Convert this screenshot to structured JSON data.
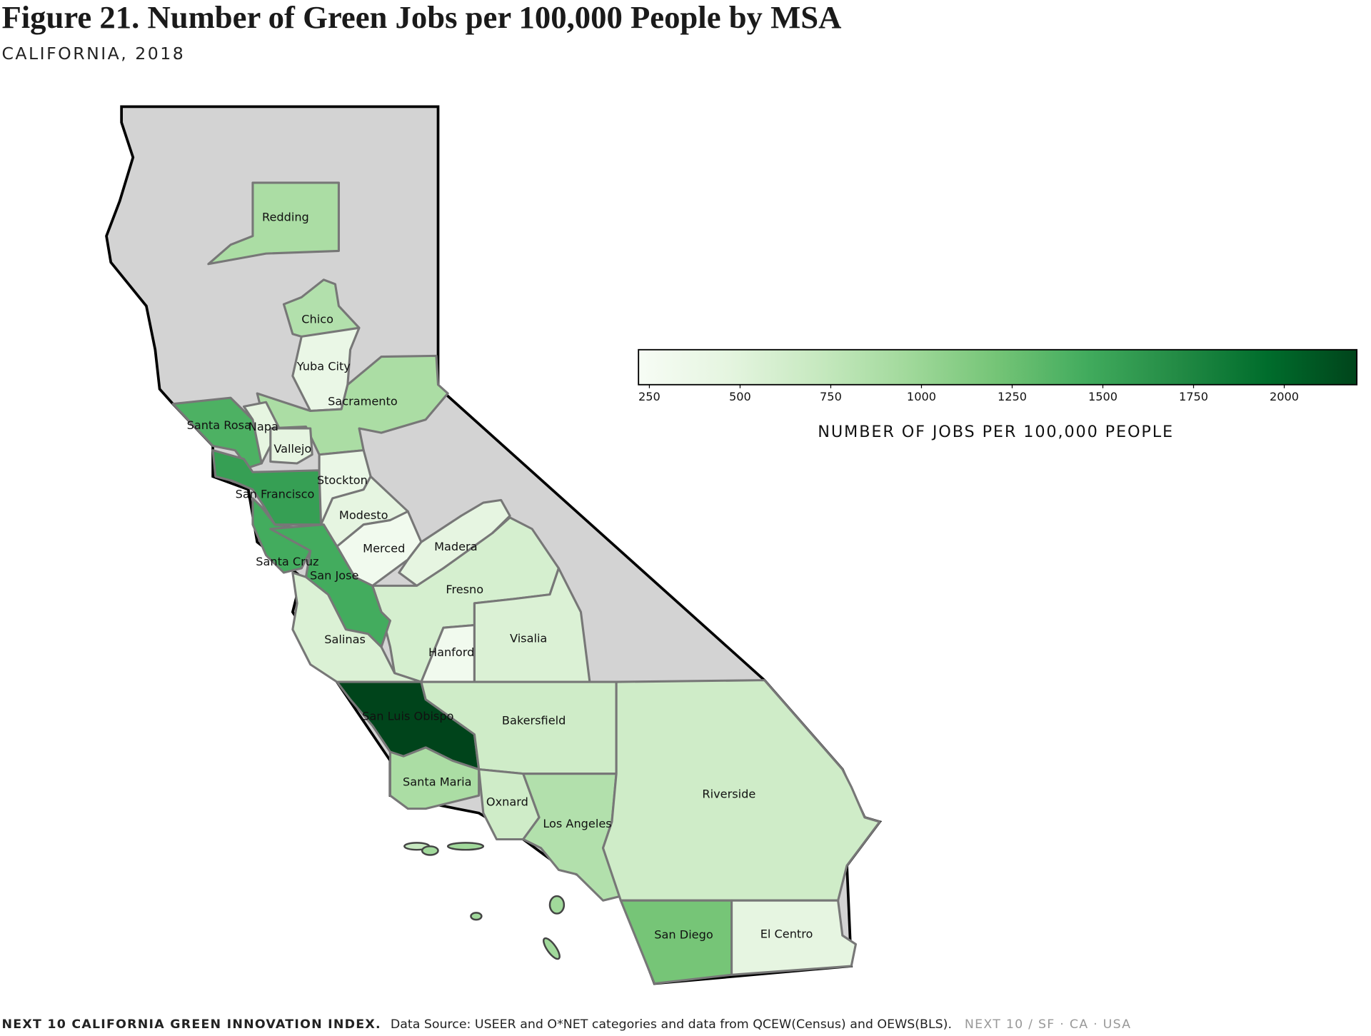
{
  "map": {
    "title": "Figure 21. Number of Green Jobs per 100,000 People by MSA",
    "subtitle": "CALIFORNIA, 2018",
    "regions": [
      {
        "name": "Redding",
        "value": 900
      },
      {
        "name": "Chico",
        "value": 850
      },
      {
        "name": "Yuba City",
        "value": 400
      },
      {
        "name": "Sacramento",
        "value": 900
      },
      {
        "name": "Santa Rosa",
        "value": 1400
      },
      {
        "name": "Napa",
        "value": 450
      },
      {
        "name": "Vallejo",
        "value": 450
      },
      {
        "name": "San Francisco",
        "value": 1550
      },
      {
        "name": "Stockton",
        "value": 400
      },
      {
        "name": "Modesto",
        "value": 450
      },
      {
        "name": "Merced",
        "value": 300
      },
      {
        "name": "Madera",
        "value": 450
      },
      {
        "name": "Fresno",
        "value": 600
      },
      {
        "name": "Santa Cruz",
        "value": 1450
      },
      {
        "name": "San Jose",
        "value": 1450
      },
      {
        "name": "Salinas",
        "value": 550
      },
      {
        "name": "Hanford",
        "value": 300
      },
      {
        "name": "Visalia",
        "value": 550
      },
      {
        "name": "San Luis Obispo",
        "value": 2200
      },
      {
        "name": "Bakersfield",
        "value": 650
      },
      {
        "name": "Santa Maria",
        "value": 900
      },
      {
        "name": "Oxnard",
        "value": 650
      },
      {
        "name": "Los Angeles",
        "value": 850
      },
      {
        "name": "Riverside",
        "value": 650
      },
      {
        "name": "San Diego",
        "value": 1200
      },
      {
        "name": "El Centro",
        "value": 450
      }
    ],
    "colorbar": {
      "lim": [
        220,
        2200
      ],
      "ticks": [
        250,
        500,
        750,
        1000,
        1250,
        1500,
        1750,
        2000
      ],
      "label": "NUMBER OF JOBS PER 100,000 PEOPLE",
      "colormap": [
        "#f7fcf5",
        "#e5f5e0",
        "#c7e9c0",
        "#a1d99b",
        "#74c476",
        "#41ab5d",
        "#238b45",
        "#006d2c",
        "#00441b"
      ]
    },
    "footer": {
      "source_bold": "NEXT 10 CALIFORNIA GREEN INNOVATION INDEX.",
      "source": "Data Source: USEER and O*NET categories and data from QCEW(Census) and OEWS(BLS).",
      "brand": "NEXT 10  /  SF · CA · USA"
    }
  }
}
